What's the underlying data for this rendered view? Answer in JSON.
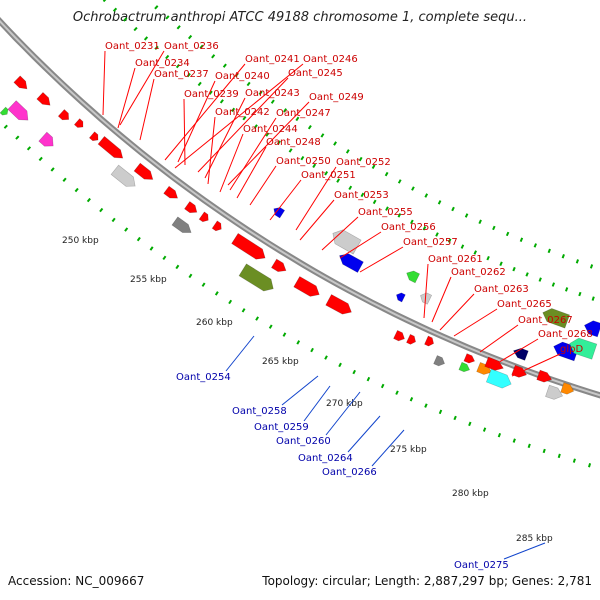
{
  "title": "Ochrobactrum anthropi ATCC 49188 chromosome 1, complete sequ...",
  "footer": {
    "accession_label": "Accession:",
    "accession": "NC_009667",
    "topology_label": "Topology:",
    "topology": "circular",
    "length_label": "Length:",
    "length": "2,887,297 bp",
    "genes_label": "Genes:",
    "genes": "2,781"
  },
  "colors": {
    "backbone": "#9a9a9a",
    "forward_gene": "#ff0000",
    "reverse_gene": "#0000ee",
    "label_forward": "#cc0000",
    "label_reverse": "#0000aa",
    "ticks": "#00aa00",
    "olive": "#6b8e23",
    "gray": "#808080",
    "light_gray": "#cccccc",
    "magenta": "#ff33cc",
    "cyan": "#33ffff",
    "orange": "#ff8800",
    "green": "#33dd33",
    "aquamarine": "#33ee99",
    "navy": "#000066"
  },
  "kbp_ticks": [
    "250 kbp",
    "255 kbp",
    "260 kbp",
    "265 kbp",
    "270 kbp",
    "275 kbp",
    "280 kbp",
    "285 kbp"
  ],
  "forward_labels": [
    "Oant_0231",
    "Oant_0236",
    "Oant_0234",
    "Oant_0237",
    "Oant_0241",
    "Oant_0246",
    "Oant_0240",
    "Oant_0245",
    "Oant_0239",
    "Oant_0243",
    "Oant_0249",
    "Oant_0242",
    "Oant_0247",
    "Oant_0244",
    "Oant_0248",
    "Oant_0250",
    "Oant_0252",
    "Oant_0251",
    "Oant_0253",
    "Oant_0255",
    "Oant_0256",
    "Oant_0257",
    "Oant_0261",
    "Oant_0262",
    "Oant_0263",
    "Oant_0265",
    "Oant_0267",
    "Oant_0268",
    "glpD"
  ],
  "reverse_labels": [
    "Oant_0254",
    "Oant_0258",
    "Oant_0259",
    "Oant_0260",
    "Oant_0264",
    "Oant_0266",
    "Oant_0275"
  ]
}
